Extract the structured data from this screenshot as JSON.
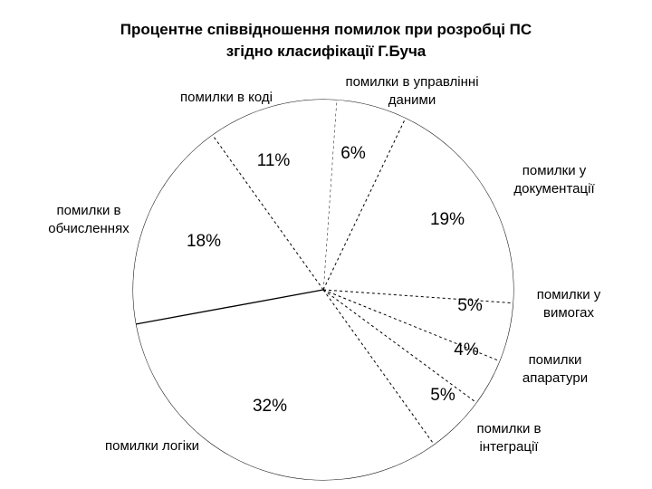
{
  "chart_data": {
    "type": "pie",
    "title_lines": [
      "Процентне співвідношення помилок при розробці  ПС",
      "згідно класифікації  Г.Буча"
    ],
    "slices": [
      {
        "label_lines": [
          "помилки в управлінні",
          "даними"
        ],
        "value": 6,
        "value_label": "6%"
      },
      {
        "label_lines": [
          "помилки у",
          "документації"
        ],
        "value": 19,
        "value_label": "19%"
      },
      {
        "label_lines": [
          "помилки у",
          "вимогах"
        ],
        "value": 5,
        "value_label": "5%"
      },
      {
        "label_lines": [
          "помилки",
          "апаратури"
        ],
        "value": 4,
        "value_label": "4%"
      },
      {
        "label_lines": [
          "помилки в",
          "інтеграції"
        ],
        "value": 5,
        "value_label": "5%"
      },
      {
        "label_lines": [
          "помилки логіки"
        ],
        "value": 32,
        "value_label": "32%"
      },
      {
        "label_lines": [
          "помилки в",
          "обчисленнях"
        ],
        "value": 18,
        "value_label": "18%"
      },
      {
        "label_lines": [
          "помилки в коді"
        ],
        "value": 11,
        "value_label": "11%"
      }
    ],
    "start_angle_deg": 4,
    "direction": "clockwise",
    "fill_color": "#ffffff",
    "stroke_color": "#000000"
  }
}
